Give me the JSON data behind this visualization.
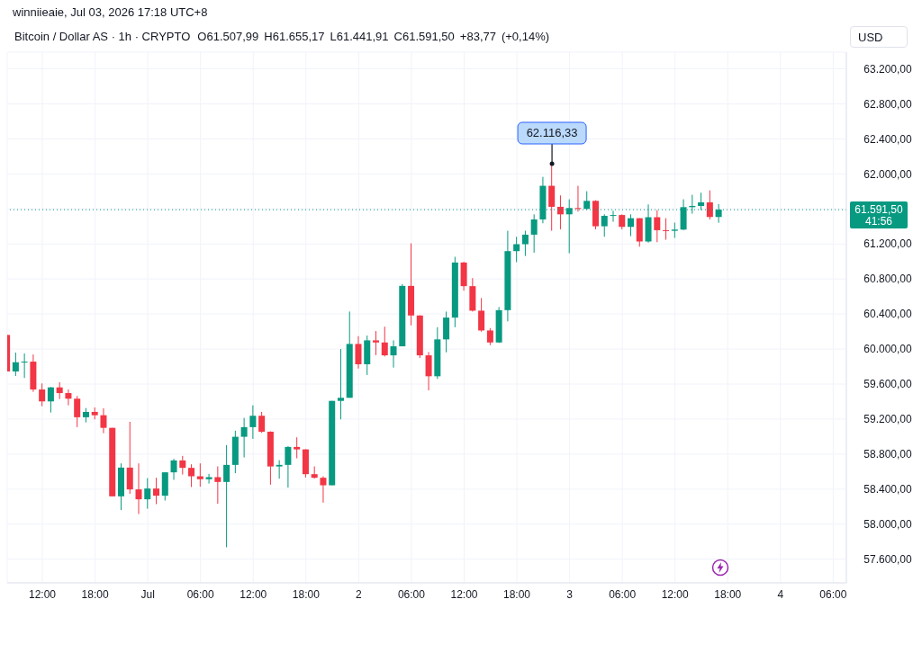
{
  "chart_data": {
    "type": "candlestick",
    "title": "Bitcoin / Dollar AS · 1h · CRYPTO",
    "ylabel": "USD",
    "annotations": [
      "winniieaie, Jul 03, 2026 17:18 UTC+8",
      "O61.507,99 H61.655,17 L61.441,91 C61.591,50 +83,77 (+0,14%)",
      "41:56",
      {
        "text": "62.116,33",
        "x": "2026-07-02T22:00",
        "y": 62116.33
      }
    ],
    "x": [
      "2026-06-30T08:00",
      "2026-06-30T09:00",
      "2026-06-30T10:00",
      "2026-06-30T11:00",
      "2026-06-30T12:00",
      "2026-06-30T13:00",
      "2026-06-30T14:00",
      "2026-06-30T15:00",
      "2026-06-30T16:00",
      "2026-06-30T17:00",
      "2026-06-30T18:00",
      "2026-06-30T19:00",
      "2026-06-30T20:00",
      "2026-06-30T21:00",
      "2026-06-30T22:00",
      "2026-06-30T23:00",
      "2026-07-01T00:00",
      "2026-07-01T01:00",
      "2026-07-01T02:00",
      "2026-07-01T03:00",
      "2026-07-01T04:00",
      "2026-07-01T05:00",
      "2026-07-01T06:00",
      "2026-07-01T07:00",
      "2026-07-01T08:00",
      "2026-07-01T09:00",
      "2026-07-01T10:00",
      "2026-07-01T11:00",
      "2026-07-01T12:00",
      "2026-07-01T13:00",
      "2026-07-01T14:00",
      "2026-07-01T15:00",
      "2026-07-01T16:00",
      "2026-07-01T17:00",
      "2026-07-01T18:00",
      "2026-07-01T19:00",
      "2026-07-01T20:00",
      "2026-07-01T21:00",
      "2026-07-01T22:00",
      "2026-07-01T23:00",
      "2026-07-02T00:00",
      "2026-07-02T01:00",
      "2026-07-02T02:00",
      "2026-07-02T03:00",
      "2026-07-02T04:00",
      "2026-07-02T05:00",
      "2026-07-02T06:00",
      "2026-07-02T07:00",
      "2026-07-02T08:00",
      "2026-07-02T09:00",
      "2026-07-02T10:00",
      "2026-07-02T11:00",
      "2026-07-02T12:00",
      "2026-07-02T13:00",
      "2026-07-02T14:00",
      "2026-07-02T15:00",
      "2026-07-02T16:00",
      "2026-07-02T17:00",
      "2026-07-02T18:00",
      "2026-07-02T19:00",
      "2026-07-02T20:00",
      "2026-07-02T21:00",
      "2026-07-02T22:00",
      "2026-07-02T23:00",
      "2026-07-03T00:00",
      "2026-07-03T01:00",
      "2026-07-03T02:00",
      "2026-07-03T03:00",
      "2026-07-03T04:00",
      "2026-07-03T05:00",
      "2026-07-03T06:00",
      "2026-07-03T07:00",
      "2026-07-03T08:00",
      "2026-07-03T09:00",
      "2026-07-03T10:00",
      "2026-07-03T11:00",
      "2026-07-03T12:00",
      "2026-07-03T13:00",
      "2026-07-03T14:00",
      "2026-07-03T15:00",
      "2026-07-03T16:00",
      "2026-07-03T17:00"
    ],
    "ohlc": [
      [
        60161,
        60161,
        59744,
        59744
      ],
      [
        59744,
        59959,
        59692,
        59849
      ],
      [
        59849,
        59949,
        59669,
        59856
      ],
      [
        59856,
        59938,
        59511,
        59538
      ],
      [
        59538,
        59607,
        59347,
        59402
      ],
      [
        59402,
        59566,
        59275,
        59562
      ],
      [
        59562,
        59621,
        59429,
        59497
      ],
      [
        59497,
        59538,
        59357,
        59433
      ],
      [
        59433,
        59464,
        59108,
        59221
      ],
      [
        59221,
        59326,
        59162,
        59282
      ],
      [
        59282,
        59333,
        59197,
        59244
      ],
      [
        59244,
        59323,
        59039,
        59100
      ],
      [
        59100,
        59100,
        58318,
        58318
      ],
      [
        58318,
        58694,
        58161,
        58646
      ],
      [
        58646,
        59169,
        58346,
        58397
      ],
      [
        58397,
        58694,
        58116,
        58284
      ],
      [
        58284,
        58526,
        58177,
        58407
      ],
      [
        58407,
        58530,
        58229,
        58325
      ],
      [
        58325,
        58592,
        58270,
        58592
      ],
      [
        58592,
        58746,
        58506,
        58728
      ],
      [
        58728,
        58780,
        58567,
        58643
      ],
      [
        58643,
        58684,
        58424,
        58547
      ],
      [
        58547,
        58694,
        58428,
        58513
      ],
      [
        58513,
        58574,
        58464,
        58537
      ],
      [
        58537,
        58660,
        58233,
        58482
      ],
      [
        58482,
        58903,
        57736,
        58677
      ],
      [
        58677,
        59067,
        58582,
        58998
      ],
      [
        58998,
        59213,
        58762,
        59108
      ],
      [
        59108,
        59357,
        58974,
        59238
      ],
      [
        59238,
        59282,
        59043,
        59056
      ],
      [
        59056,
        59060,
        58451,
        58659
      ],
      [
        58659,
        58731,
        58520,
        58677
      ],
      [
        58677,
        58890,
        58418,
        58882
      ],
      [
        58882,
        58992,
        58752,
        58854
      ],
      [
        58854,
        58857,
        58533,
        58571
      ],
      [
        58571,
        58660,
        58520,
        58530
      ],
      [
        58530,
        58547,
        58246,
        58444
      ],
      [
        58444,
        59408,
        58444,
        59408
      ],
      [
        59408,
        60000,
        59197,
        59443
      ],
      [
        59443,
        60428,
        59443,
        60058
      ],
      [
        60058,
        60147,
        59777,
        59826
      ],
      [
        59826,
        60154,
        59703,
        60099
      ],
      [
        60099,
        60205,
        59931,
        60075
      ],
      [
        60075,
        60256,
        59915,
        59928
      ],
      [
        59928,
        60099,
        59788,
        60031
      ],
      [
        60031,
        60742,
        60031,
        60721
      ],
      [
        60721,
        61207,
        60270,
        60383
      ],
      [
        60383,
        60386,
        59897,
        59928
      ],
      [
        59928,
        59966,
        59528,
        59689
      ],
      [
        59689,
        60249,
        59658,
        60110
      ],
      [
        60110,
        60428,
        59962,
        60359
      ],
      [
        60359,
        61053,
        60249,
        60988
      ],
      [
        60988,
        60995,
        60667,
        60718
      ],
      [
        60718,
        60810,
        60428,
        60438
      ],
      [
        60438,
        60582,
        60198,
        60212
      ],
      [
        60212,
        60239,
        60044,
        60075
      ],
      [
        60075,
        60479,
        60069,
        60444
      ],
      [
        60444,
        61351,
        60315,
        61118
      ],
      [
        61118,
        61282,
        60992,
        61197
      ],
      [
        61197,
        61351,
        61063,
        61306
      ],
      [
        61306,
        61538,
        61100,
        61480
      ],
      [
        61480,
        61966,
        61436,
        61864
      ],
      [
        61864,
        62116.33,
        61351,
        61624
      ],
      [
        61624,
        61754,
        61367,
        61538
      ],
      [
        61538,
        61710,
        61094,
        61610
      ],
      [
        61610,
        61864,
        61569,
        61600
      ],
      [
        61600,
        61802,
        61590,
        61692
      ],
      [
        61692,
        61699,
        61367,
        61402
      ],
      [
        61402,
        61538,
        61282,
        61521
      ],
      [
        61521,
        61579,
        61453,
        61530
      ],
      [
        61530,
        61538,
        61367,
        61395
      ],
      [
        61395,
        61538,
        61289,
        61494
      ],
      [
        61494,
        61494,
        61169,
        61228
      ],
      [
        61228,
        61651,
        61214,
        61505
      ],
      [
        61505,
        61587,
        61220,
        61357
      ],
      [
        61357,
        61494,
        61248,
        61350
      ],
      [
        61350,
        61443,
        61269,
        61364
      ],
      [
        61364,
        61710,
        61357,
        61620
      ],
      [
        61620,
        61761,
        61546,
        61634
      ],
      [
        61634,
        61785,
        61587,
        61675
      ],
      [
        61675,
        61812,
        61480,
        61507.99
      ],
      [
        61507.99,
        61655.17,
        61441.91,
        61591.5
      ]
    ],
    "colors": [
      "#f23645",
      "#089981",
      "#089981",
      "#f23645",
      "#f23645",
      "#089981",
      "#f23645",
      "#f23645",
      "#f23645",
      "#089981",
      "#f23645",
      "#f23645",
      "#f23645",
      "#089981",
      "#f23645",
      "#f23645",
      "#089981",
      "#f23645",
      "#089981",
      "#089981",
      "#f23645",
      "#f23645",
      "#f23645",
      "#089981",
      "#f23645",
      "#089981",
      "#089981",
      "#089981",
      "#089981",
      "#f23645",
      "#f23645",
      "#089981",
      "#089981",
      "#f23645",
      "#f23645",
      "#f23645",
      "#f23645",
      "#089981",
      "#089981",
      "#089981",
      "#f23645",
      "#089981",
      "#f23645",
      "#f23645",
      "#089981",
      "#089981",
      "#f23645",
      "#f23645",
      "#f23645",
      "#089981",
      "#089981",
      "#089981",
      "#f23645",
      "#f23645",
      "#f23645",
      "#f23645",
      "#089981",
      "#089981",
      "#089981",
      "#089981",
      "#089981",
      "#089981",
      "#f23645",
      "#f23645",
      "#089981",
      "#f23645",
      "#089981",
      "#f23645",
      "#089981",
      "#089981",
      "#f23645",
      "#089981",
      "#f23645",
      "#089981",
      "#f23645",
      "#f23645",
      "#089981",
      "#089981",
      "#089981",
      "#089981",
      "#f23645",
      "#089981"
    ],
    "xlim": [
      "2026-06-30T08:00",
      "2026-07-04T07:30"
    ],
    "xticks": [
      {
        "value": "2026-06-30T12:00",
        "label": "12:00"
      },
      {
        "value": "2026-06-30T18:00",
        "label": "18:00"
      },
      {
        "value": "2026-07-01T00:00",
        "label": "Jul"
      },
      {
        "value": "2026-07-01T06:00",
        "label": "06:00"
      },
      {
        "value": "2026-07-01T12:00",
        "label": "12:00"
      },
      {
        "value": "2026-07-01T18:00",
        "label": "18:00"
      },
      {
        "value": "2026-07-02T00:00",
        "label": "2"
      },
      {
        "value": "2026-07-02T06:00",
        "label": "06:00"
      },
      {
        "value": "2026-07-02T12:00",
        "label": "12:00"
      },
      {
        "value": "2026-07-02T18:00",
        "label": "18:00"
      },
      {
        "value": "2026-07-03T00:00",
        "label": "3"
      },
      {
        "value": "2026-07-03T06:00",
        "label": "06:00"
      },
      {
        "value": "2026-07-03T12:00",
        "label": "12:00"
      },
      {
        "value": "2026-07-03T18:00",
        "label": "18:00"
      },
      {
        "value": "2026-07-04T00:00",
        "label": "4"
      },
      {
        "value": "2026-07-04T06:00",
        "label": "06:00"
      }
    ],
    "ylim": [
      57330,
      63390
    ],
    "yticks": [
      {
        "value": 57600,
        "label": "57.600,00"
      },
      {
        "value": 58000,
        "label": "58.000,00"
      },
      {
        "value": 58400,
        "label": "58.400,00"
      },
      {
        "value": 58800,
        "label": "58.800,00"
      },
      {
        "value": 59200,
        "label": "59.200,00"
      },
      {
        "value": 59600,
        "label": "59.600,00"
      },
      {
        "value": 60000,
        "label": "60.000,00"
      },
      {
        "value": 60400,
        "label": "60.400,00"
      },
      {
        "value": 60800,
        "label": "60.800,00"
      },
      {
        "value": 61200,
        "label": "61.200,00"
      },
      {
        "value": 61600,
        "label": null
      },
      {
        "value": 62000,
        "label": "62.000,00"
      },
      {
        "value": 62400,
        "label": "62.400,00"
      },
      {
        "value": 62800,
        "label": "62.800,00"
      },
      {
        "value": 63200,
        "label": "63.200,00"
      }
    ],
    "ref_lines": [
      {
        "axis": "y",
        "value": 61591.5,
        "label": "61.591,50",
        "color": "#089981",
        "line_style": "dotted"
      }
    ],
    "grid": true
  }
}
